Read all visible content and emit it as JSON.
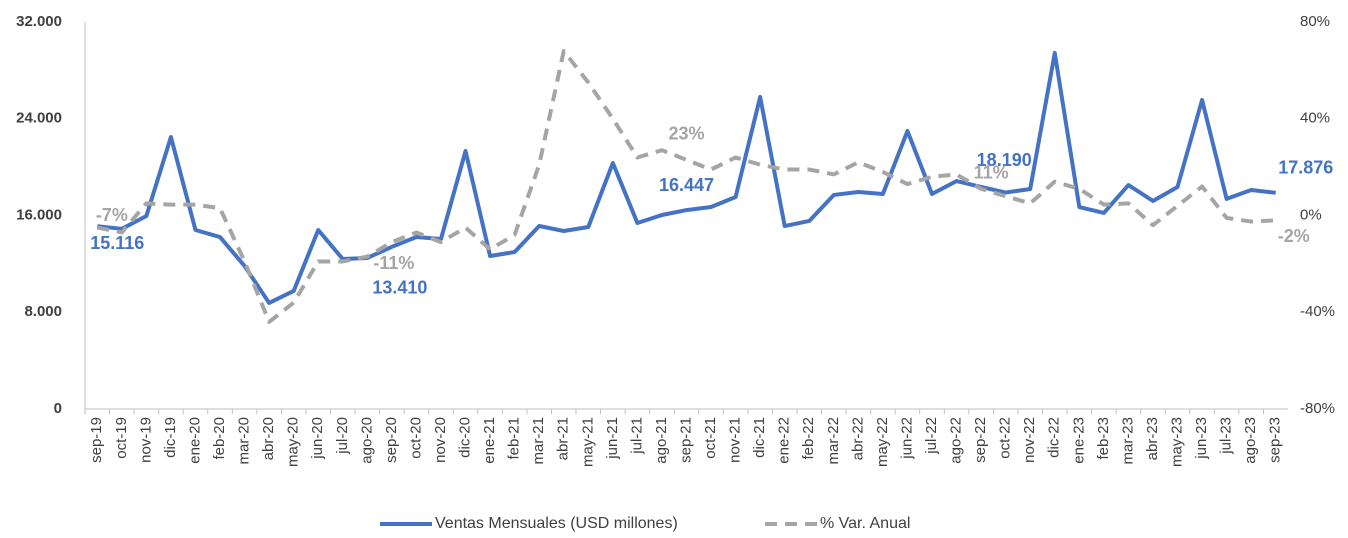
{
  "chart_data": {
    "type": "line",
    "categories": [
      "sep-19",
      "oct-19",
      "nov-19",
      "dic-19",
      "ene-20",
      "feb-20",
      "mar-20",
      "abr-20",
      "may-20",
      "jun-20",
      "jul-20",
      "ago-20",
      "sep-20",
      "oct-20",
      "nov-20",
      "dic-20",
      "ene-21",
      "feb-21",
      "mar-21",
      "abr-21",
      "may-21",
      "jun-21",
      "jul-21",
      "ago-21",
      "sep-21",
      "oct-21",
      "nov-21",
      "dic-21",
      "ene-22",
      "feb-22",
      "mar-22",
      "abr-22",
      "may-22",
      "jun-22",
      "jul-22",
      "ago-22",
      "sep-22",
      "oct-22",
      "nov-22",
      "dic-22",
      "ene-23",
      "feb-23",
      "mar-23",
      "abr-23",
      "may-23",
      "jun-23",
      "jul-23",
      "ago-23",
      "sep-23"
    ],
    "series": [
      {
        "name": "Ventas Mensuales (USD millones)",
        "color": "#4472c4",
        "dash": false,
        "values": [
          15116,
          14900,
          15960,
          22490,
          14800,
          14220,
          11820,
          8770,
          9760,
          14800,
          12400,
          12490,
          13410,
          14220,
          14060,
          21330,
          12650,
          12980,
          15130,
          14720,
          15050,
          20340,
          15380,
          16040,
          16447,
          16700,
          17530,
          25800,
          15130,
          15550,
          17700,
          17940,
          17780,
          22990,
          17780,
          18850,
          18360,
          17900,
          18190,
          29440,
          16700,
          16210,
          18520,
          17200,
          18360,
          25550,
          17370,
          18110,
          17876
        ],
        "value_labels": [
          "15.116",
          null,
          null,
          null,
          null,
          null,
          null,
          null,
          null,
          null,
          null,
          null,
          "13.410",
          null,
          null,
          null,
          null,
          null,
          null,
          null,
          null,
          null,
          null,
          null,
          "16.447",
          null,
          null,
          null,
          null,
          null,
          null,
          null,
          null,
          null,
          null,
          null,
          null,
          null,
          "18.190",
          null,
          null,
          null,
          null,
          null,
          null,
          null,
          null,
          null,
          "17.876"
        ]
      },
      {
        "name": "% Var. Anual",
        "color": "#a5a5a5",
        "dash": true,
        "axis": "y2",
        "values": [
          -5,
          -7,
          5,
          4.5,
          4.5,
          3,
          -19,
          -44,
          -36,
          -19,
          -19,
          -17,
          -11,
          -7,
          -11,
          -5,
          -14,
          -8,
          21,
          68,
          55,
          40,
          24,
          27,
          23,
          19,
          24,
          21,
          19,
          19,
          17,
          22,
          18,
          13,
          16,
          17,
          11,
          8,
          5,
          14,
          11,
          4.5,
          5,
          -4,
          4,
          12,
          -1,
          -2.5,
          -2
        ],
        "value_labels": [
          null,
          "-7%",
          null,
          null,
          null,
          null,
          null,
          null,
          null,
          null,
          null,
          null,
          "-11%",
          null,
          null,
          null,
          null,
          null,
          null,
          null,
          null,
          null,
          null,
          null,
          "23%",
          null,
          null,
          null,
          null,
          null,
          null,
          null,
          null,
          null,
          null,
          null,
          "11%",
          null,
          null,
          null,
          null,
          null,
          null,
          null,
          null,
          null,
          null,
          null,
          "-2%"
        ]
      }
    ],
    "ylim": [
      0,
      32000
    ],
    "yticks": [
      0,
      {
        "value": 8000,
        "label": "8.000"
      },
      {
        "value": 16000,
        "label": "16.000"
      },
      {
        "value": 24000,
        "label": "24.000"
      },
      {
        "value": 32000,
        "label": "32.000"
      }
    ],
    "y2lim": [
      -80,
      80
    ],
    "y2ticks": [
      {
        "value": -80,
        "label": "-80%"
      },
      {
        "value": -40,
        "label": "-40%"
      },
      {
        "value": 0,
        "label": "0%"
      },
      {
        "value": 40,
        "label": "40%"
      },
      {
        "value": 80,
        "label": "80%"
      }
    ]
  }
}
